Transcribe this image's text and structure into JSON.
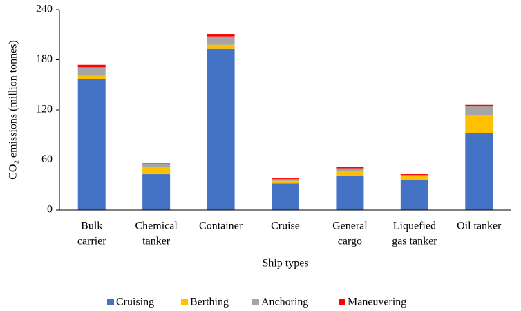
{
  "chart_data": {
    "type": "stacked_bar",
    "y_label": "CO₂ emissions (million tonnes)",
    "x_label": "Ship types",
    "categories": [
      [
        "Bulk",
        "carrier"
      ],
      [
        "Chemical",
        "tanker"
      ],
      [
        "Container"
      ],
      [
        "Cruise"
      ],
      [
        "General",
        "cargo"
      ],
      [
        "Liquefied",
        "gas tanker"
      ],
      [
        "Oil tanker"
      ]
    ],
    "series": [
      {
        "name": "Cruising",
        "color": "#4472c4",
        "values": [
          157,
          43,
          193,
          32,
          41,
          36,
          92
        ]
      },
      {
        "name": "Berthing",
        "color": "#ffc000",
        "values": [
          4,
          9,
          5,
          3,
          6,
          5,
          22
        ]
      },
      {
        "name": "Anchoring",
        "color": "#a5a5a5",
        "values": [
          10,
          3,
          10,
          2,
          3,
          1,
          10
        ]
      },
      {
        "name": "Maneuvering",
        "color": "#ff0000",
        "values": [
          3,
          1,
          3,
          1,
          2,
          1,
          2
        ]
      }
    ],
    "ylim": [
      0,
      240
    ],
    "yticks": [
      0,
      60,
      120,
      180,
      240
    ],
    "grid": false,
    "legend": "bottom"
  }
}
